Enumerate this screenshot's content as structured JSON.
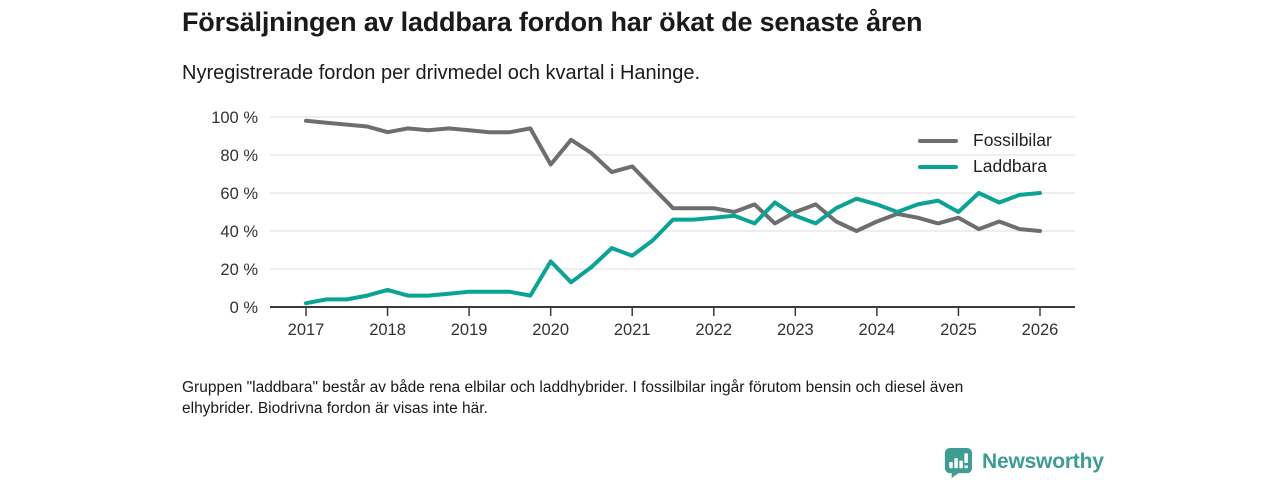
{
  "header": {
    "title": "Försäljningen av laddbara fordon har ökat de senaste åren",
    "subtitle": "Nyregistrerade fordon per drivmedel och kvartal i Haninge."
  },
  "chart_data": {
    "type": "line",
    "title": "Försäljningen av laddbara fordon har ökat de senaste åren",
    "subtitle": "Nyregistrerade fordon per drivmedel och kvartal i Haninge.",
    "categories": [
      "2017 Q1",
      "2017 Q2",
      "2017 Q3",
      "2017 Q4",
      "2018 Q1",
      "2018 Q2",
      "2018 Q3",
      "2018 Q4",
      "2019 Q1",
      "2019 Q2",
      "2019 Q3",
      "2019 Q4",
      "2020 Q1",
      "2020 Q2",
      "2020 Q3",
      "2020 Q4",
      "2021 Q1",
      "2021 Q2",
      "2021 Q3",
      "2021 Q4",
      "2022 Q1",
      "2022 Q2",
      "2022 Q3",
      "2022 Q4",
      "2023 Q1",
      "2023 Q2",
      "2023 Q3",
      "2023 Q4",
      "2024 Q1",
      "2024 Q2",
      "2024 Q3",
      "2024 Q4",
      "2025 Q1",
      "2025 Q2",
      "2025 Q3",
      "2025 Q4",
      "2026 Q1"
    ],
    "series": [
      {
        "name": "Fossilbilar",
        "color": "#6e6e6e",
        "values": [
          98,
          97,
          96,
          95,
          92,
          94,
          93,
          94,
          93,
          92,
          92,
          94,
          75,
          88,
          81,
          71,
          74,
          63,
          52,
          52,
          52,
          50,
          54,
          44,
          50,
          54,
          45,
          40,
          45,
          49,
          47,
          44,
          47,
          41,
          45,
          41,
          40
        ]
      },
      {
        "name": "Laddbara",
        "color": "#0aa396",
        "values": [
          2,
          4,
          4,
          6,
          9,
          6,
          6,
          7,
          8,
          8,
          8,
          6,
          24,
          13,
          21,
          31,
          27,
          35,
          46,
          46,
          47,
          48,
          44,
          55,
          48,
          44,
          52,
          57,
          54,
          50,
          54,
          56,
          50,
          60,
          55,
          59,
          60
        ]
      }
    ],
    "xticks": [
      "2017",
      "2018",
      "2019",
      "2020",
      "2021",
      "2022",
      "2023",
      "2024",
      "2025",
      "2026"
    ],
    "yticks": [
      "100 %",
      "80 %",
      "60 %",
      "40 %",
      "20 %",
      "0 %"
    ],
    "ytick_values": [
      100,
      80,
      60,
      40,
      20,
      0
    ],
    "ylim": [
      0,
      100
    ],
    "unit": "%",
    "grid": "horizontal",
    "grid_color": "#dedede",
    "axis_color": "#3a3a3a",
    "legend_position": "top-right"
  },
  "footnote": {
    "lines": [
      "Gruppen \"laddbara\" består av både rena elbilar och laddhybrider. I fossilbilar ingår förutom bensin och diesel även",
      "elhybrider. Biodrivna fordon är visas inte här."
    ]
  },
  "branding": {
    "name": "Newsworthy",
    "color": "#3f9c92",
    "icon": "bar-chart-pin-icon"
  }
}
